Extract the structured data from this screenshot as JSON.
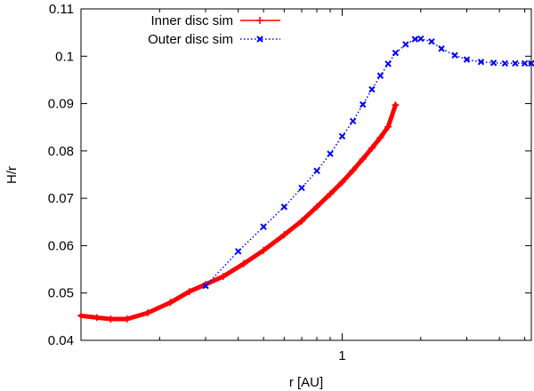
{
  "chart_data": {
    "type": "line",
    "title": "",
    "xlabel": "r [AU]",
    "ylabel": "H/r",
    "xscale": "log",
    "xlim": [
      0.1,
      5.3
    ],
    "ylim": [
      0.04,
      0.11
    ],
    "xticks": [
      {
        "value": 1,
        "label": "1"
      }
    ],
    "yticks": [
      {
        "value": 0.04,
        "label": "0.04"
      },
      {
        "value": 0.05,
        "label": "0.05"
      },
      {
        "value": 0.06,
        "label": "0.06"
      },
      {
        "value": 0.07,
        "label": "0.07"
      },
      {
        "value": 0.08,
        "label": "0.08"
      },
      {
        "value": 0.09,
        "label": "0.09"
      },
      {
        "value": 0.1,
        "label": "0.1"
      },
      {
        "value": 0.11,
        "label": "0.11"
      }
    ],
    "legend_position": "top-left",
    "series": [
      {
        "name": "Inner disc sim",
        "color": "#ff0000",
        "line_style": "solid",
        "marker": "plus",
        "x": [
          0.1,
          0.115,
          0.13,
          0.15,
          0.18,
          0.22,
          0.26,
          0.3,
          0.35,
          0.42,
          0.5,
          0.6,
          0.7,
          0.8,
          0.9,
          1.0,
          1.1,
          1.2,
          1.3,
          1.4,
          1.5,
          1.6
        ],
        "y": [
          0.0452,
          0.0448,
          0.0445,
          0.0445,
          0.0458,
          0.048,
          0.0503,
          0.0518,
          0.0535,
          0.0562,
          0.059,
          0.0623,
          0.0652,
          0.0682,
          0.0709,
          0.0734,
          0.0759,
          0.0783,
          0.0806,
          0.0828,
          0.0851,
          0.0897
        ]
      },
      {
        "name": "Outer disc sim",
        "color": "#0000ff",
        "line_style": "dotted",
        "marker": "x",
        "x": [
          0.3,
          0.4,
          0.5,
          0.6,
          0.7,
          0.8,
          0.9,
          1.0,
          1.1,
          1.2,
          1.3,
          1.4,
          1.5,
          1.6,
          1.75,
          1.9,
          2.0,
          2.2,
          2.4,
          2.7,
          3.0,
          3.4,
          3.8,
          4.2,
          4.6,
          5.0,
          5.3
        ],
        "y": [
          0.0515,
          0.0588,
          0.064,
          0.0682,
          0.0722,
          0.0758,
          0.0794,
          0.0831,
          0.0863,
          0.0898,
          0.093,
          0.0959,
          0.0984,
          0.1007,
          0.1025,
          0.1036,
          0.1037,
          0.1031,
          0.1016,
          0.1002,
          0.0993,
          0.0988,
          0.0986,
          0.0985,
          0.0985,
          0.0985,
          0.0985
        ]
      }
    ]
  }
}
